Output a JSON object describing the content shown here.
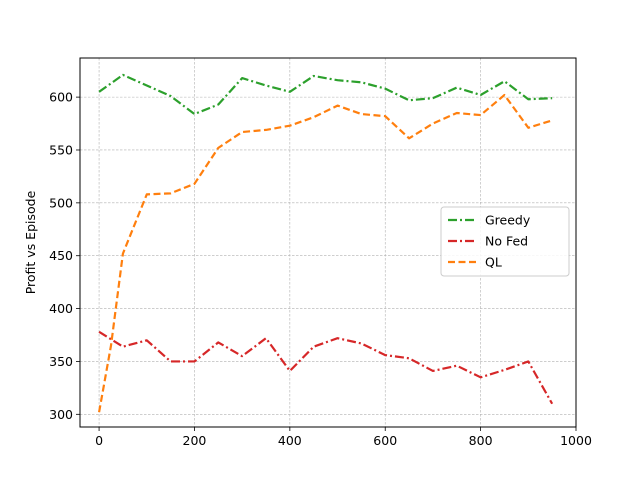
{
  "chart_data": {
    "type": "line",
    "title": "",
    "xlabel": "",
    "ylabel": "Profit vs Episode",
    "xlim": [
      -40,
      1000
    ],
    "ylim": [
      288,
      637
    ],
    "xticks": [
      0,
      200,
      400,
      600,
      800,
      1000
    ],
    "yticks": [
      300,
      350,
      400,
      450,
      500,
      550,
      600
    ],
    "grid": true,
    "legend_position": "center-right",
    "x": [
      0,
      50,
      100,
      150,
      200,
      250,
      300,
      350,
      400,
      450,
      500,
      550,
      600,
      650,
      700,
      750,
      800,
      850,
      900,
      950
    ],
    "series": [
      {
        "name": "Greedy",
        "color": "#2ca02c",
        "linestyle": "dashdot",
        "values": [
          605,
          621,
          611,
          601,
          584,
          593,
          618,
          611,
          605,
          620,
          616,
          614,
          608,
          597,
          599,
          609,
          602,
          615,
          598,
          599
        ]
      },
      {
        "name": "No Fed",
        "color": "#d62728",
        "linestyle": "dashdot",
        "values": [
          378,
          364,
          370,
          350,
          350,
          368,
          355,
          372,
          341,
          364,
          372,
          367,
          356,
          353,
          341,
          346,
          335,
          342,
          350,
          310
        ]
      },
      {
        "name": "QL",
        "color": "#ff7f0e",
        "linestyle": "dashed",
        "x": [
          0,
          25,
          50,
          100,
          150,
          200,
          250,
          300,
          350,
          400,
          450,
          500,
          550,
          600,
          650,
          700,
          750,
          800,
          850,
          900,
          950
        ],
        "values": [
          302,
          365,
          452,
          508,
          509,
          518,
          552,
          567,
          569,
          573,
          581,
          592,
          584,
          582,
          561,
          575,
          585,
          583,
          602,
          571,
          578
        ]
      }
    ]
  }
}
